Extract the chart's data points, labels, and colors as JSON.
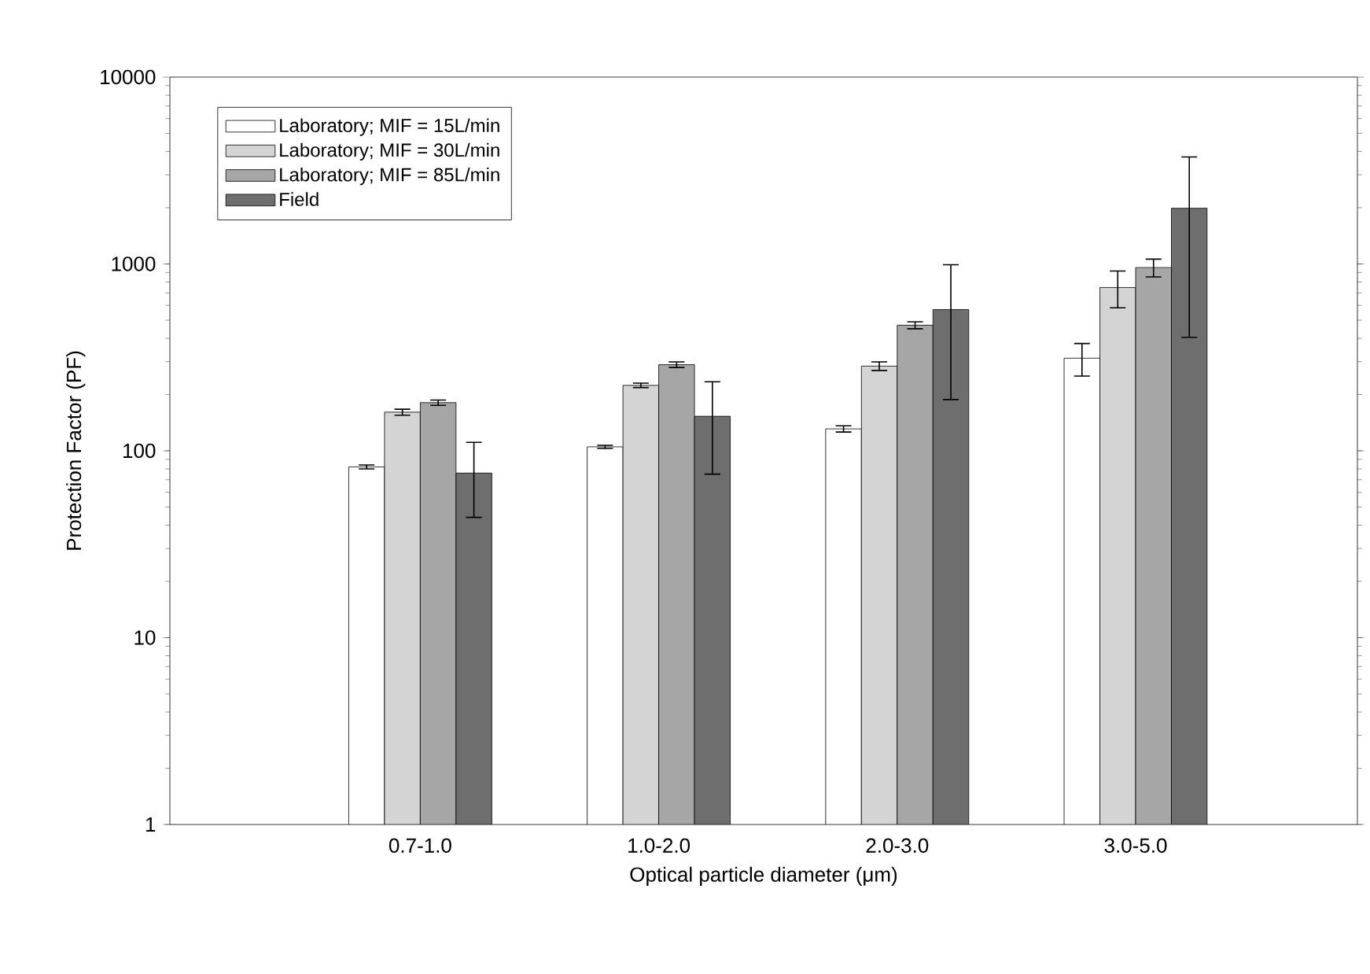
{
  "chart_data": {
    "type": "bar",
    "xlabel": "Optical particle diameter (μm)",
    "ylabel": "Protection Factor (PF)",
    "categories": [
      "0.7-1.0",
      "1.0-2.0",
      "2.0-3.0",
      "3.0-5.0"
    ],
    "series": [
      {
        "name": "Laboratory; MIF = 15L/min",
        "color": "#ffffff",
        "values": [
          82,
          105,
          131,
          313
        ],
        "errors": [
          2,
          2,
          5,
          [
            251,
            375
          ]
        ]
      },
      {
        "name": "Laboratory; MIF = 30L/min",
        "color": "#d4d4d4",
        "values": [
          161,
          224,
          284,
          748
        ],
        "errors": [
          6,
          6,
          15,
          [
            582,
            916
          ]
        ]
      },
      {
        "name": "Laboratory; MIF = 85L/min",
        "color": "#a6a6a6",
        "values": [
          181,
          289,
          470,
          958
        ],
        "errors": [
          6,
          10,
          20,
          [
            852,
            1061
          ]
        ]
      },
      {
        "name": "Field",
        "color": "#6e6e6e",
        "values": [
          76,
          153,
          570,
          1987
        ],
        "errors": [
          [
            44,
            111
          ],
          [
            75,
            234
          ],
          [
            188,
            990
          ],
          [
            405,
            3740
          ]
        ]
      }
    ],
    "log": "y",
    "ylim": [
      1,
      10000
    ],
    "yticks": [
      1,
      10,
      100,
      1000,
      10000
    ],
    "legend": "top left",
    "grid": false
  }
}
